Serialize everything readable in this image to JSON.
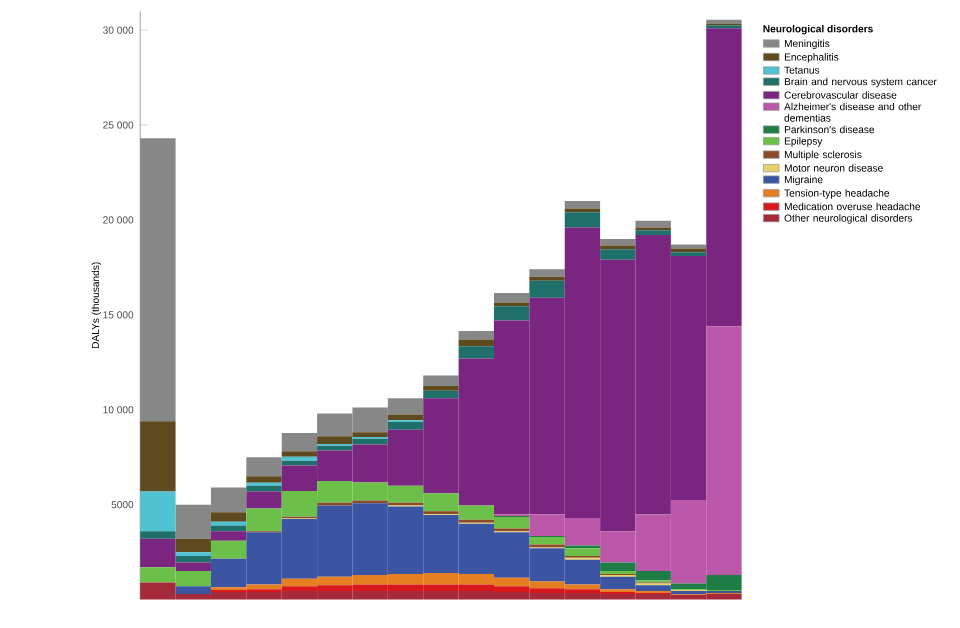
{
  "chart_data": {
    "type": "bar",
    "stacked": true,
    "ylabel": "DALYs (thousands)",
    "legend_title": "Neurological disorders",
    "legend": "top right",
    "grid": false,
    "tick_labels": "y",
    "categories": [
      null,
      null,
      null,
      null,
      null,
      null,
      null,
      null,
      null,
      null,
      null,
      null,
      null,
      null,
      null,
      null,
      null
    ],
    "ylim": [
      0,
      31000
    ],
    "yticks": [
      5000,
      {
        "value": 10000,
        "label": "10 000"
      },
      {
        "value": 15000,
        "label": "15 000"
      },
      {
        "value": 20000,
        "label": "20 000"
      },
      {
        "value": 25000,
        "label": "25 000"
      },
      {
        "value": 30000,
        "label": "30 000"
      }
    ],
    "series": [
      {
        "name": "Other neurological disorders",
        "color": "#a52a3a",
        "values": [
          900,
          300,
          400,
          400,
          450,
          450,
          450,
          450,
          450,
          450,
          400,
          350,
          350,
          300,
          300,
          250,
          300
        ]
      },
      {
        "name": "Medication overuse headache",
        "color": "#d7191c",
        "values": [
          0,
          0,
          100,
          150,
          250,
          300,
          350,
          350,
          350,
          350,
          300,
          250,
          200,
          100,
          50,
          0,
          0
        ]
      },
      {
        "name": "Tension-type headache",
        "color": "#e67e22",
        "values": [
          0,
          0,
          150,
          250,
          400,
          450,
          500,
          550,
          600,
          550,
          450,
          350,
          250,
          150,
          100,
          50,
          50
        ]
      },
      {
        "name": "Migraine",
        "color": "#3b55a3",
        "values": [
          0,
          400,
          1500,
          2750,
          3150,
          3750,
          3770,
          3550,
          3050,
          2650,
          2400,
          1750,
          1300,
          650,
          300,
          150,
          100
        ]
      },
      {
        "name": "Motor neuron disease",
        "color": "#e8d36a",
        "values": [
          0,
          0,
          0,
          0,
          20,
          null,
          null,
          50,
          50,
          50,
          50,
          50,
          100,
          100,
          100,
          50,
          0
        ]
      },
      {
        "name": "Multiple sclerosis",
        "color": "#8b4a2a",
        "values": [
          0,
          0,
          0,
          50,
          100,
          150,
          150,
          150,
          150,
          150,
          150,
          150,
          100,
          50,
          50,
          0,
          0
        ]
      },
      {
        "name": "Epilepsy",
        "color": "#6cc04a",
        "values": [
          800,
          800,
          950,
          1200,
          1350,
          1150,
          950,
          900,
          950,
          750,
          600,
          400,
          400,
          150,
          100,
          50,
          50
        ]
      },
      {
        "name": "Parkinson's disease",
        "color": "#1e7d45",
        "values": [
          0,
          0,
          0,
          0,
          0,
          0,
          0,
          0,
          0,
          0,
          50,
          50,
          150,
          450,
          500,
          300,
          800
        ]
      },
      {
        "name": "Alzheimer's disease and other dementias",
        "color": "#bc58a9",
        "values": [
          0,
          0,
          0,
          0,
          0,
          0,
          0,
          0,
          0,
          0,
          100,
          1150,
          1450,
          1650,
          3000,
          4400,
          13100
        ]
      },
      {
        "name": "Cerebrovascular disease",
        "color": "#7a2580",
        "values": [
          1500,
          450,
          500,
          900,
          1350,
          1600,
          2000,
          2950,
          5000,
          7750,
          10200,
          11400,
          15300,
          14300,
          14700,
          12850,
          15700
        ]
      },
      {
        "name": "Brain and nervous system cancer",
        "color": "#1f6f6a",
        "values": [
          400,
          350,
          300,
          300,
          250,
          250,
          300,
          400,
          400,
          650,
          750,
          900,
          800,
          550,
          250,
          200,
          150
        ]
      },
      {
        "name": "Tetanus",
        "color": "#4fc3d1",
        "values": [
          2100,
          200,
          200,
          150,
          200,
          100,
          100,
          100,
          0,
          0,
          0,
          0,
          0,
          0,
          0,
          0,
          0
        ]
      },
      {
        "name": "Encephalitis",
        "color": "#5e4a1f",
        "values": [
          3700,
          700,
          500,
          350,
          300,
          400,
          250,
          300,
          250,
          350,
          200,
          200,
          200,
          200,
          150,
          200,
          100
        ]
      },
      {
        "name": "Meningitis",
        "color": "#878787",
        "values": [
          14900,
          1800,
          1300,
          1000,
          950,
          1200,
          1300,
          850,
          550,
          450,
          500,
          400,
          400,
          350,
          350,
          200,
          200
        ]
      }
    ]
  }
}
